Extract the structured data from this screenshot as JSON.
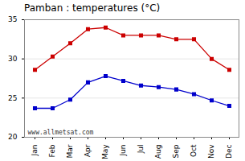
{
  "chart_data": {
    "type": "line",
    "title": "Pamban : temperatures (°C)",
    "categories": [
      "Jan",
      "Feb",
      "Mar",
      "Apr",
      "May",
      "Jun",
      "Jul",
      "Aug",
      "Sep",
      "Oct",
      "Nov",
      "Dec"
    ],
    "series": [
      {
        "color": "#cc0000",
        "marker": "square",
        "values": [
          28.6,
          30.3,
          32.0,
          33.8,
          34.0,
          33.0,
          33.0,
          33.0,
          32.5,
          32.5,
          30.0,
          28.6
        ]
      },
      {
        "color": "#0000cc",
        "marker": "square",
        "values": [
          23.7,
          23.7,
          24.8,
          27.0,
          27.8,
          27.2,
          26.6,
          26.4,
          26.1,
          25.5,
          24.7,
          24.0
        ]
      }
    ],
    "ylim": [
      20,
      35
    ],
    "yticks": [
      20,
      25,
      30,
      35
    ],
    "grid": true,
    "annotations": [
      "www.allmetsat.com"
    ]
  }
}
